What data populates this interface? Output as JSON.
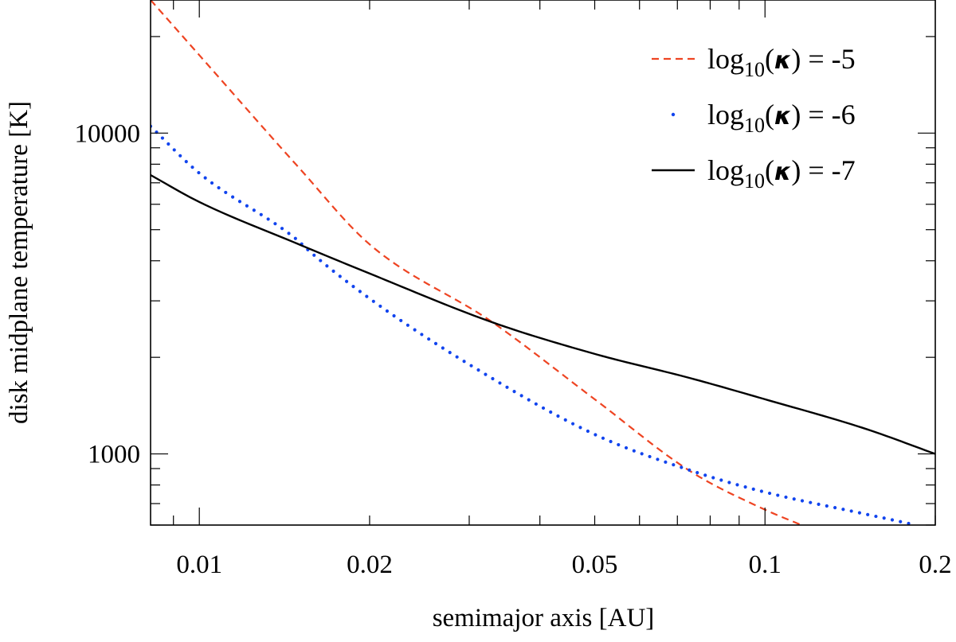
{
  "chart_data": {
    "type": "line",
    "xscale": "log",
    "yscale": "log",
    "xlabel": "semimajor axis [AU]",
    "ylabel": "disk midplane temperature [K]",
    "xlim": [
      0.0082,
      0.2
    ],
    "ylim": [
      600,
      26000
    ],
    "xticks": [
      {
        "value": 0.01,
        "label": "0.01"
      },
      {
        "value": 0.02,
        "label": "0.02"
      },
      {
        "value": 0.05,
        "label": "0.05"
      },
      {
        "value": 0.1,
        "label": "0.1"
      },
      {
        "value": 0.2,
        "label": "0.2"
      }
    ],
    "yticks": [
      {
        "value": 1000,
        "label": "1000"
      },
      {
        "value": 10000,
        "label": "10000"
      }
    ],
    "legend_position": "top-right",
    "series": [
      {
        "name": "log10(κ) = -5",
        "legend_parts": {
          "prefix": "log",
          "subscript": "10",
          "open": "(",
          "kappa": "κ",
          "suffix": ") = -5"
        },
        "color": "#ee4422",
        "style": "dashed",
        "x": [
          0.0082,
          0.01,
          0.015,
          0.02,
          0.033,
          0.05,
          0.074,
          0.1,
          0.116
        ],
        "y": [
          26000,
          17500,
          7800,
          4500,
          2570,
          1480,
          880,
          670,
          600
        ]
      },
      {
        "name": "log10(κ) = -6",
        "legend_parts": {
          "prefix": "log",
          "subscript": "10",
          "open": "(",
          "kappa": "κ",
          "suffix": ") = -6"
        },
        "color": "#1144ee",
        "style": "dotted",
        "x": [
          0.0082,
          0.01,
          0.015,
          0.0155,
          0.02,
          0.03,
          0.05,
          0.075,
          0.1,
          0.15,
          0.185
        ],
        "y": [
          10500,
          7500,
          4600,
          4350,
          3050,
          1900,
          1150,
          880,
          760,
          650,
          600
        ]
      },
      {
        "name": "log10(κ) = -7",
        "legend_parts": {
          "prefix": "log",
          "subscript": "10",
          "open": "(",
          "kappa": "κ",
          "suffix": ") = -7"
        },
        "color": "#000000",
        "style": "solid",
        "x": [
          0.0082,
          0.01,
          0.015,
          0.02,
          0.033,
          0.05,
          0.074,
          0.1,
          0.15,
          0.2
        ],
        "y": [
          7400,
          6100,
          4500,
          3650,
          2570,
          2050,
          1720,
          1480,
          1200,
          1000
        ]
      }
    ]
  }
}
